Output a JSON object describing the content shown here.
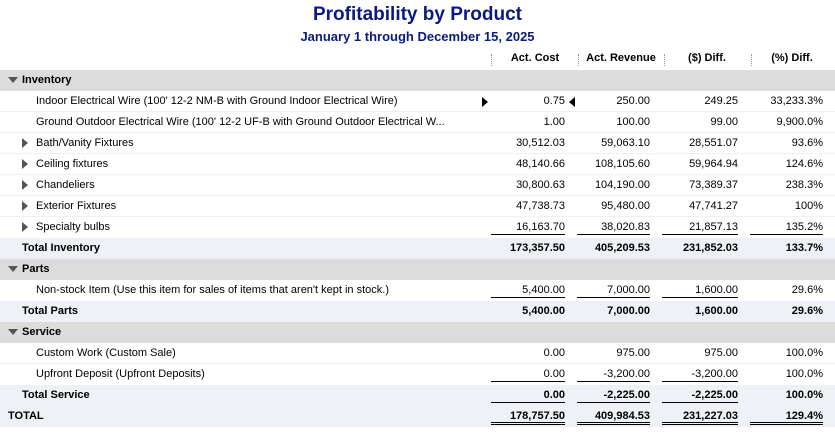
{
  "report": {
    "title": "Profitability by Product",
    "subtitle": "January 1 through December 15, 2025"
  },
  "columns": [
    "Act. Cost",
    "Act. Revenue",
    "($) Diff.",
    "(%) Diff."
  ],
  "rows": {
    "inventory": {
      "label": "Inventory"
    },
    "r1": {
      "label": "Indoor Electrical Wire (100' 12-2 NM-B with Ground Indoor Electrical Wire)",
      "cost": "0.75",
      "revenue": "250.00",
      "diff": "249.25",
      "pct": "33,233.3%"
    },
    "r2": {
      "label": "Ground Outdoor Electrical Wire (100' 12-2 UF-B with Ground Outdoor Electrical W...",
      "cost": "1.00",
      "revenue": "100.00",
      "diff": "99.00",
      "pct": "9,900.0%"
    },
    "r3": {
      "label": "Bath/Vanity Fixtures",
      "cost": "30,512.03",
      "revenue": "59,063.10",
      "diff": "28,551.07",
      "pct": "93.6%"
    },
    "r4": {
      "label": "Ceiling fixtures",
      "cost": "48,140.66",
      "revenue": "108,105.60",
      "diff": "59,964.94",
      "pct": "124.6%"
    },
    "r5": {
      "label": "Chandeliers",
      "cost": "30,800.63",
      "revenue": "104,190.00",
      "diff": "73,389.37",
      "pct": "238.3%"
    },
    "r6": {
      "label": "Exterior Fixtures",
      "cost": "47,738.73",
      "revenue": "95,480.00",
      "diff": "47,741.27",
      "pct": "100%"
    },
    "r7": {
      "label": "Specialty bulbs",
      "cost": "16,163.70",
      "revenue": "38,020.83",
      "diff": "21,857.13",
      "pct": "135.2%"
    },
    "total_inventory": {
      "label": "Total Inventory",
      "cost": "173,357.50",
      "revenue": "405,209.53",
      "diff": "231,852.03",
      "pct": "133.7%"
    },
    "parts": {
      "label": "Parts"
    },
    "r8": {
      "label": "Non-stock Item (Use this item for sales of items that aren't kept in stock.)",
      "cost": "5,400.00",
      "revenue": "7,000.00",
      "diff": "1,600.00",
      "pct": "29.6%"
    },
    "total_parts": {
      "label": "Total Parts",
      "cost": "5,400.00",
      "revenue": "7,000.00",
      "diff": "1,600.00",
      "pct": "29.6%"
    },
    "service": {
      "label": "Service"
    },
    "r9": {
      "label": "Custom Work (Custom Sale)",
      "cost": "0.00",
      "revenue": "975.00",
      "diff": "975.00",
      "pct": "100.0%"
    },
    "r10": {
      "label": "Upfront Deposit (Upfront Deposits)",
      "cost": "0.00",
      "revenue": "-3,200.00",
      "diff": "-3,200.00",
      "pct": "100.0%"
    },
    "total_service": {
      "label": "Total Service",
      "cost": "0.00",
      "revenue": "-2,225.00",
      "diff": "-2,225.00",
      "pct": "100.0%"
    },
    "total": {
      "label": "TOTAL",
      "cost": "178,757.50",
      "revenue": "409,984.53",
      "diff": "231,227.03",
      "pct": "129.4%"
    }
  }
}
